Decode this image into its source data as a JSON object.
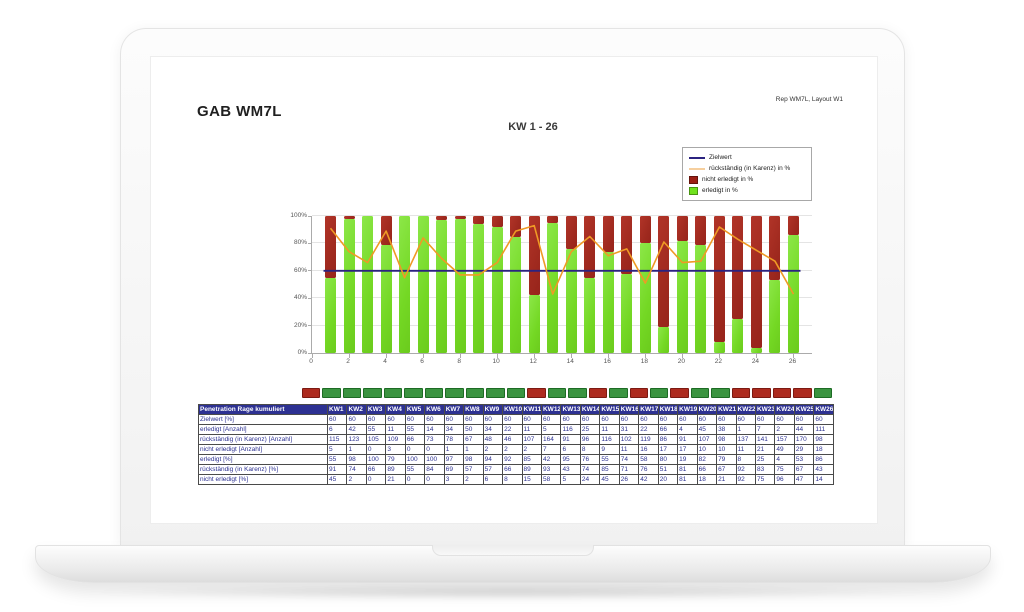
{
  "page": {
    "title": "GAB WM7L",
    "report_label": "Rep WM7L, Layout W1"
  },
  "chart": {
    "legend": [
      {
        "label": "Zielwert",
        "type": "line",
        "color": "#2b2380",
        "icon": "zielwert-line-swatch"
      },
      {
        "label": "rückständig (in Karenz) in %",
        "type": "line",
        "color": "#f6cf9e",
        "icon": "rueckstaendig-line-swatch"
      },
      {
        "label": "nicht erledigt in %",
        "type": "box",
        "color": "#9c1f15",
        "icon": "nicht-erledigt-box-swatch"
      },
      {
        "label": "erledigt in %",
        "type": "box",
        "color": "#70e21e",
        "icon": "erledigt-box-swatch"
      }
    ]
  },
  "chart_data": {
    "type": "bar",
    "stacked": true,
    "title": "KW 1 - 26",
    "xlabel": "",
    "ylabel": "",
    "ylim": [
      0,
      100
    ],
    "yticks": [
      0,
      20,
      40,
      60,
      80,
      100
    ],
    "ytick_format": "percent",
    "xticks": [
      0,
      2,
      4,
      6,
      8,
      10,
      12,
      14,
      16,
      18,
      20,
      22,
      24,
      26
    ],
    "grid": true,
    "legend_position": "top-right",
    "categories": [
      "KW1",
      "KW2",
      "KW3",
      "KW4",
      "KW5",
      "KW6",
      "KW7",
      "KW8",
      "KW9",
      "KW10",
      "KW11",
      "KW12",
      "KW13",
      "KW14",
      "KW15",
      "KW16",
      "KW17",
      "KW18",
      "KW19",
      "KW20",
      "KW21",
      "KW22",
      "KW23",
      "KW24",
      "KW25",
      "KW26"
    ],
    "series": [
      {
        "name": "erledigt in %",
        "type": "bar",
        "color": "#79da2e",
        "values": [
          55,
          98,
          100,
          79,
          100,
          100,
          97,
          98,
          94,
          92,
          85,
          42,
          95,
          76,
          55,
          74,
          58,
          80,
          19,
          82,
          79,
          8,
          25,
          4,
          53,
          86
        ]
      },
      {
        "name": "nicht erledigt in %",
        "type": "bar",
        "color": "#a32d22",
        "values": [
          45,
          2,
          0,
          21,
          0,
          0,
          3,
          2,
          6,
          8,
          15,
          58,
          5,
          24,
          45,
          26,
          42,
          20,
          81,
          18,
          21,
          92,
          75,
          96,
          47,
          14
        ]
      },
      {
        "name": "rückständig (in Karenz) in %",
        "type": "line",
        "color": "#ef9a25",
        "values": [
          91,
          74,
          66,
          89,
          55,
          84,
          69,
          57,
          57,
          66,
          89,
          93,
          43,
          74,
          85,
          71,
          76,
          51,
          81,
          66,
          67,
          92,
          83,
          75,
          67,
          43
        ]
      },
      {
        "name": "Zielwert",
        "type": "hline",
        "color": "#2b2380",
        "value": 60
      }
    ]
  },
  "status_strip": {
    "colors": {
      "green": "#3a9440",
      "red": "#ad2b1f"
    },
    "cells": [
      "red",
      "green",
      "green",
      "green",
      "green",
      "green",
      "green",
      "green",
      "green",
      "green",
      "green",
      "red",
      "green",
      "green",
      "red",
      "green",
      "red",
      "green",
      "red",
      "green",
      "green",
      "red",
      "red",
      "red",
      "red",
      "green"
    ]
  },
  "table": {
    "header_label": "Penetration Rage kumuliert",
    "columns": [
      "KW1",
      "KW2",
      "KW3",
      "KW4",
      "KW5",
      "KW6",
      "KW7",
      "KW8",
      "KW9",
      "KW10",
      "KW11",
      "KW12",
      "KW13",
      "KW14",
      "KW15",
      "KW16",
      "KW17",
      "KW18",
      "KW19",
      "KW20",
      "KW21",
      "KW22",
      "KW23",
      "KW24",
      "KW25",
      "KW26"
    ],
    "rows": [
      {
        "label": "Zielwert [%]",
        "values": [
          60,
          60,
          60,
          60,
          60,
          60,
          60,
          60,
          60,
          60,
          60,
          60,
          60,
          60,
          60,
          60,
          60,
          60,
          60,
          60,
          60,
          60,
          60,
          60,
          60,
          60
        ]
      },
      {
        "label": "erledigt [Anzahl]",
        "values": [
          6,
          42,
          55,
          11,
          55,
          14,
          34,
          50,
          34,
          22,
          11,
          5,
          116,
          25,
          11,
          31,
          22,
          66,
          4,
          45,
          38,
          1,
          7,
          2,
          44,
          111
        ]
      },
      {
        "label": "rückständig (in Karenz) [Anzahl]",
        "values": [
          115,
          123,
          105,
          109,
          66,
          73,
          78,
          67,
          48,
          46,
          107,
          164,
          91,
          96,
          116,
          102,
          119,
          86,
          91,
          107,
          98,
          137,
          141,
          157,
          170,
          98
        ]
      },
      {
        "label": "nicht erledigt [Anzahl]",
        "values": [
          5,
          1,
          0,
          3,
          0,
          0,
          1,
          1,
          2,
          2,
          2,
          7,
          6,
          8,
          9,
          11,
          16,
          17,
          17,
          10,
          10,
          11,
          21,
          49,
          29,
          18
        ]
      },
      {
        "label": "erledigt [%]",
        "values": [
          55,
          98,
          100,
          79,
          100,
          100,
          97,
          98,
          94,
          92,
          85,
          42,
          95,
          76,
          55,
          74,
          58,
          80,
          19,
          82,
          79,
          8,
          25,
          4,
          53,
          86
        ]
      },
      {
        "label": "rückständig (in Karenz) [%]",
        "values": [
          91,
          74,
          66,
          89,
          55,
          84,
          69,
          57,
          57,
          66,
          89,
          93,
          43,
          74,
          85,
          71,
          76,
          51,
          81,
          66,
          67,
          92,
          83,
          75,
          67,
          43
        ]
      },
      {
        "label": "nicht erledigt [%]",
        "values": [
          45,
          2,
          0,
          21,
          0,
          0,
          3,
          2,
          6,
          8,
          15,
          58,
          5,
          24,
          45,
          26,
          42,
          20,
          81,
          18,
          21,
          92,
          75,
          96,
          47,
          14
        ]
      }
    ]
  }
}
